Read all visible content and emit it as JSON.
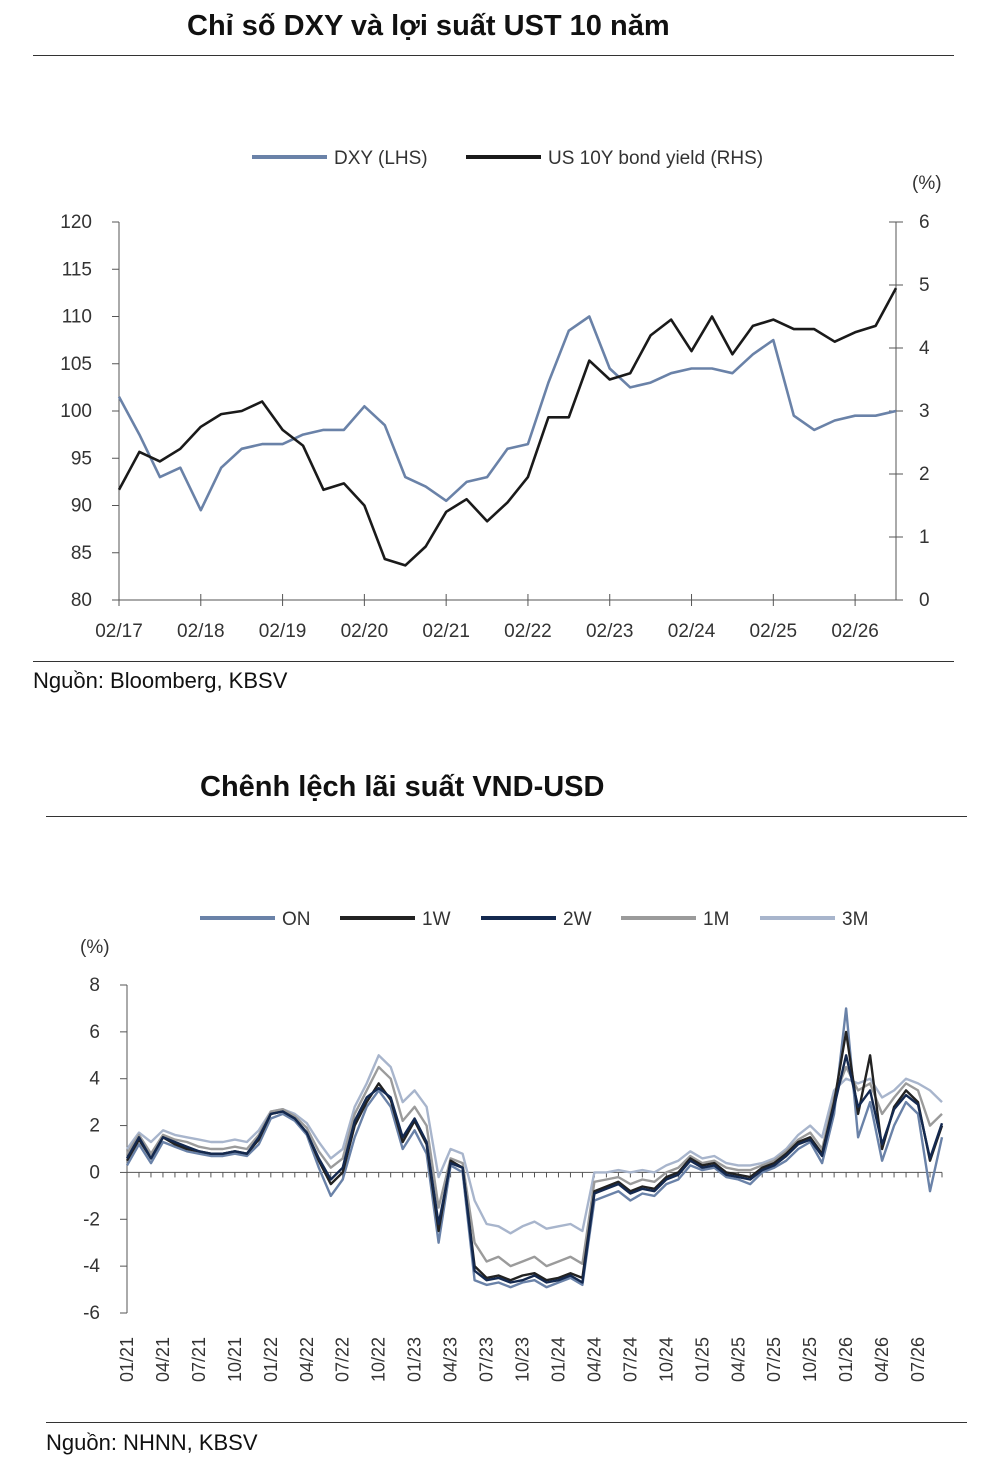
{
  "chart1": {
    "title": "Chỉ số DXY và lợi suất UST 10 năm",
    "source": "Nguồn: Bloomberg, KBSV",
    "right_unit": "(%)",
    "chart_data": {
      "type": "line",
      "x": [
        "02/17",
        "05/17",
        "08/17",
        "11/17",
        "02/18",
        "05/18",
        "08/18",
        "11/18",
        "02/19",
        "05/19",
        "08/19",
        "11/19",
        "02/20",
        "05/20",
        "08/20",
        "11/20",
        "02/21",
        "05/21",
        "08/21",
        "11/21",
        "02/22",
        "05/22",
        "08/22",
        "11/22",
        "02/23",
        "05/23",
        "08/23",
        "11/23",
        "02/24",
        "05/24",
        "08/24",
        "11/24",
        "02/25",
        "05/25",
        "08/25",
        "11/25",
        "02/26",
        "05/26",
        "08/26"
      ],
      "x_tick_labels": [
        "02/17",
        "02/18",
        "02/19",
        "02/20",
        "02/21",
        "02/22",
        "02/23",
        "02/24",
        "02/25",
        "02/26"
      ],
      "series": [
        {
          "name": "DXY (LHS)",
          "axis": "left",
          "color": "#6a82a8",
          "values": [
            101.5,
            97.5,
            93.0,
            94.0,
            89.5,
            94.0,
            96.0,
            96.5,
            96.5,
            97.5,
            98.0,
            98.0,
            100.5,
            98.5,
            93.0,
            92.0,
            90.5,
            92.5,
            93.0,
            96.0,
            96.5,
            103.0,
            108.5,
            110.0,
            104.5,
            102.5,
            103.0,
            104.0,
            104.5,
            104.5,
            104.0,
            106.0,
            107.5,
            99.5,
            98.0,
            99.0,
            99.5,
            99.5,
            100.0
          ]
        },
        {
          "name": "US 10Y bond yield (RHS)",
          "axis": "right",
          "color": "#1a1a1a",
          "values": [
            1.75,
            2.35,
            2.2,
            2.4,
            2.75,
            2.95,
            3.0,
            3.15,
            2.7,
            2.45,
            1.75,
            1.85,
            1.5,
            0.65,
            0.55,
            0.85,
            1.4,
            1.6,
            1.25,
            1.55,
            1.95,
            2.9,
            2.9,
            3.8,
            3.5,
            3.6,
            4.2,
            4.45,
            3.95,
            4.5,
            3.9,
            4.35,
            4.45,
            4.3,
            4.3,
            4.1,
            4.25,
            4.35,
            4.95
          ]
        }
      ],
      "ylim_left": [
        80,
        120
      ],
      "yticks_left": [
        80,
        85,
        90,
        95,
        100,
        105,
        110,
        115,
        120
      ],
      "ylim_right": [
        0,
        6
      ],
      "yticks_right": [
        0,
        1,
        2,
        3,
        4,
        5,
        6
      ],
      "legend_position": "top"
    }
  },
  "chart2": {
    "title": "Chênh lệch lãi suất VND-USD",
    "source": "Nguồn: NHNN, KBSV",
    "y_unit": "(%)",
    "chart_data": {
      "type": "line",
      "x": [
        "01/21",
        "02/21",
        "03/21",
        "04/21",
        "05/21",
        "06/21",
        "07/21",
        "08/21",
        "09/21",
        "10/21",
        "11/21",
        "12/21",
        "01/22",
        "02/22",
        "03/22",
        "04/22",
        "05/22",
        "06/22",
        "07/22",
        "08/22",
        "09/22",
        "10/22",
        "11/22",
        "12/22",
        "01/23",
        "02/23",
        "03/23",
        "04/23",
        "05/23",
        "06/23",
        "07/23",
        "08/23",
        "09/23",
        "10/23",
        "11/23",
        "12/23",
        "01/24",
        "02/24",
        "03/24",
        "04/24",
        "05/24",
        "06/24",
        "07/24",
        "08/24",
        "09/24",
        "10/24",
        "11/24",
        "12/24",
        "01/25",
        "02/25",
        "03/25",
        "04/25",
        "05/25",
        "06/25",
        "07/25",
        "08/25",
        "09/25",
        "10/25",
        "11/25",
        "12/25",
        "01/26",
        "02/26",
        "03/26",
        "04/26",
        "05/26",
        "06/26",
        "07/26",
        "08/26",
        "09/26"
      ],
      "x_tick_labels": [
        "01/21",
        "04/21",
        "07/21",
        "10/21",
        "01/22",
        "04/22",
        "07/22",
        "10/22",
        "01/23",
        "04/23",
        "07/23",
        "10/23",
        "01/24",
        "04/24",
        "07/24",
        "10/24",
        "01/25",
        "04/25",
        "07/25",
        "10/25",
        "01/26",
        "04/26",
        "07/26"
      ],
      "series": [
        {
          "name": "ON",
          "color": "#6a82a8",
          "values": [
            0.3,
            1.2,
            0.4,
            1.3,
            1.1,
            0.9,
            0.8,
            0.7,
            0.7,
            0.8,
            0.7,
            1.2,
            2.3,
            2.5,
            2.2,
            1.6,
            0.2,
            -1.0,
            -0.3,
            1.5,
            2.8,
            3.5,
            2.8,
            1.0,
            1.8,
            0.8,
            -3.0,
            0.3,
            0.0,
            -4.6,
            -4.8,
            -4.7,
            -4.9,
            -4.7,
            -4.6,
            -4.9,
            -4.7,
            -4.5,
            -4.8,
            -1.2,
            -1.0,
            -0.8,
            -1.2,
            -0.9,
            -1.0,
            -0.5,
            -0.3,
            0.3,
            0.1,
            0.2,
            -0.2,
            -0.3,
            -0.5,
            0.0,
            0.2,
            0.5,
            1.0,
            1.3,
            0.4,
            2.5,
            7.0,
            1.5,
            3.0,
            0.5,
            2.0,
            3.0,
            2.5,
            -0.8,
            1.5
          ]
        },
        {
          "name": "1W",
          "color": "#222222",
          "values": [
            0.5,
            1.4,
            0.6,
            1.5,
            1.2,
            1.0,
            0.9,
            0.8,
            0.8,
            0.9,
            0.8,
            1.4,
            2.5,
            2.6,
            2.3,
            1.7,
            0.5,
            -0.5,
            0.0,
            2.0,
            3.0,
            3.8,
            3.1,
            1.3,
            2.2,
            1.2,
            -2.5,
            0.5,
            0.2,
            -4.0,
            -4.5,
            -4.4,
            -4.6,
            -4.4,
            -4.3,
            -4.6,
            -4.5,
            -4.3,
            -4.5,
            -0.8,
            -0.6,
            -0.4,
            -0.8,
            -0.6,
            -0.7,
            -0.2,
            0.0,
            0.6,
            0.3,
            0.4,
            0.0,
            -0.1,
            -0.2,
            0.2,
            0.4,
            0.8,
            1.3,
            1.5,
            0.8,
            3.0,
            6.0,
            2.5,
            5.0,
            1.0,
            2.8,
            3.5,
            3.0,
            0.5,
            2.0
          ]
        },
        {
          "name": "2W",
          "color": "#14294f",
          "values": [
            0.6,
            1.5,
            0.6,
            1.5,
            1.3,
            1.1,
            0.9,
            0.8,
            0.8,
            0.9,
            0.8,
            1.5,
            2.5,
            2.6,
            2.3,
            1.7,
            0.6,
            -0.3,
            0.2,
            2.2,
            3.2,
            3.6,
            3.2,
            1.5,
            2.3,
            1.3,
            -2.2,
            0.4,
            0.2,
            -4.2,
            -4.6,
            -4.5,
            -4.7,
            -4.6,
            -4.4,
            -4.7,
            -4.6,
            -4.4,
            -4.7,
            -0.9,
            -0.7,
            -0.5,
            -0.9,
            -0.7,
            -0.8,
            -0.3,
            -0.1,
            0.5,
            0.2,
            0.3,
            -0.1,
            -0.2,
            -0.3,
            0.1,
            0.3,
            0.7,
            1.2,
            1.4,
            0.7,
            2.8,
            5.0,
            2.8,
            3.5,
            1.2,
            2.7,
            3.3,
            2.9,
            0.6,
            2.1
          ]
        },
        {
          "name": "1M",
          "color": "#9b9b9b",
          "values": [
            0.8,
            1.6,
            0.8,
            1.6,
            1.4,
            1.3,
            1.1,
            1.0,
            1.0,
            1.1,
            1.0,
            1.6,
            2.6,
            2.7,
            2.4,
            1.9,
            0.9,
            0.2,
            0.6,
            2.5,
            3.5,
            4.5,
            4.0,
            2.2,
            2.8,
            2.0,
            -1.5,
            0.6,
            0.4,
            -3.0,
            -3.8,
            -3.6,
            -4.0,
            -3.8,
            -3.6,
            -4.0,
            -3.8,
            -3.6,
            -3.9,
            -0.4,
            -0.3,
            -0.2,
            -0.5,
            -0.3,
            -0.4,
            0.0,
            0.2,
            0.7,
            0.4,
            0.5,
            0.2,
            0.1,
            0.1,
            0.3,
            0.5,
            0.9,
            1.4,
            1.7,
            1.0,
            3.2,
            4.5,
            3.5,
            3.8,
            2.5,
            3.2,
            3.8,
            3.5,
            2.0,
            2.5
          ]
        },
        {
          "name": "3M",
          "color": "#a8b5cc",
          "values": [
            1.0,
            1.7,
            1.3,
            1.8,
            1.6,
            1.5,
            1.4,
            1.3,
            1.3,
            1.4,
            1.3,
            1.8,
            2.6,
            2.7,
            2.5,
            2.1,
            1.3,
            0.6,
            1.0,
            2.8,
            3.8,
            5.0,
            4.5,
            3.0,
            3.5,
            2.8,
            -0.2,
            1.0,
            0.8,
            -1.2,
            -2.2,
            -2.3,
            -2.6,
            -2.3,
            -2.1,
            -2.4,
            -2.3,
            -2.2,
            -2.5,
            0.0,
            0.0,
            0.1,
            0.0,
            0.1,
            0.0,
            0.3,
            0.5,
            0.9,
            0.6,
            0.7,
            0.4,
            0.3,
            0.3,
            0.4,
            0.6,
            1.0,
            1.6,
            2.0,
            1.5,
            3.5,
            4.0,
            3.8,
            4.0,
            3.2,
            3.5,
            4.0,
            3.8,
            3.5,
            3.0
          ]
        }
      ],
      "ylim": [
        -6,
        8
      ],
      "yticks": [
        -6,
        -4,
        -2,
        0,
        2,
        4,
        6,
        8
      ],
      "legend_position": "top"
    }
  }
}
